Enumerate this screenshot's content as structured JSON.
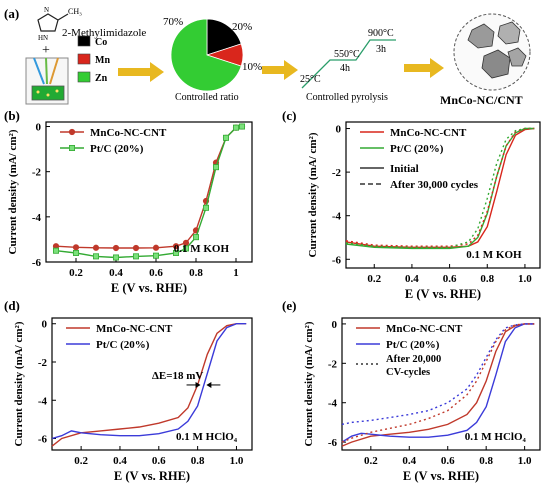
{
  "scheme": {
    "panel_label": "(a)",
    "ligand_name": "2-Methylimidazole",
    "plus_sign": "+",
    "legend": [
      {
        "name": "Co",
        "color": "#000000"
      },
      {
        "name": "Mn",
        "color": "#d9261c"
      },
      {
        "name": "Zn",
        "color": "#33cc33"
      }
    ],
    "pie": {
      "slices": [
        {
          "name": "Co",
          "percent": 20,
          "label": "20%",
          "color": "#000000"
        },
        {
          "name": "Mn",
          "percent": 10,
          "label": "10%",
          "color": "#d9261c"
        },
        {
          "name": "Zn",
          "percent": 70,
          "label": "70%",
          "color": "#33cc33"
        }
      ],
      "caption": "Controlled ratio"
    },
    "pyrolysis": {
      "steps": [
        {
          "temp": "25°C",
          "time": ""
        },
        {
          "temp": "550°C",
          "time": "4h"
        },
        {
          "temp": "900°C",
          "time": "3h"
        }
      ],
      "caption": "Controlled pyrolysis"
    },
    "product": "MnCo-NC/CNT",
    "arrow_color": "#e8b820"
  },
  "chart_data": [
    {
      "panel": "(b)",
      "type": "line",
      "xlabel": "E (V vs. RHE)",
      "ylabel": "Current density (mA/ cm²)",
      "xlim": [
        0.05,
        1.08
      ],
      "ylim": [
        -6.0,
        0.2
      ],
      "xticks": [
        0.2,
        0.4,
        0.6,
        0.8,
        1.0
      ],
      "xticklabels": [
        "0.2",
        "0.4",
        "0.6",
        "0.8",
        "1"
      ],
      "yticks": [
        0,
        -2,
        -4,
        -6
      ],
      "yticklabels": [
        "0",
        "-2",
        "-4",
        "-6"
      ],
      "annotation": "0.1 M KOH",
      "legend_position": "top-left",
      "series": [
        {
          "name": "MnCo-NC-CNT",
          "color": "#c0392b",
          "marker": "circle",
          "dash": "",
          "x": [
            0.1,
            0.2,
            0.3,
            0.4,
            0.5,
            0.6,
            0.7,
            0.75,
            0.8,
            0.85,
            0.9,
            0.95,
            1.0,
            1.03
          ],
          "y": [
            -5.3,
            -5.35,
            -5.37,
            -5.38,
            -5.38,
            -5.37,
            -5.3,
            -5.15,
            -4.6,
            -3.3,
            -1.6,
            -0.5,
            -0.05,
            0.0
          ]
        },
        {
          "name": "Pt/C (20%)",
          "color": "#33aa33",
          "marker": "square",
          "dash": "",
          "x": [
            0.1,
            0.2,
            0.3,
            0.4,
            0.5,
            0.6,
            0.7,
            0.75,
            0.8,
            0.85,
            0.9,
            0.95,
            1.0,
            1.03
          ],
          "y": [
            -5.5,
            -5.6,
            -5.75,
            -5.8,
            -5.75,
            -5.72,
            -5.6,
            -5.4,
            -4.9,
            -3.6,
            -1.8,
            -0.5,
            -0.05,
            0.0
          ]
        }
      ]
    },
    {
      "panel": "(c)",
      "type": "line",
      "xlabel": "E (V vs. RHE)",
      "ylabel": "Current density (mA/ cm²)",
      "xlim": [
        0.05,
        1.08
      ],
      "ylim": [
        -6.4,
        0.3
      ],
      "xticks": [
        0.2,
        0.4,
        0.6,
        0.8,
        1.0
      ],
      "xticklabels": [
        "0.2",
        "0.4",
        "0.6",
        "0.8",
        "1.0"
      ],
      "yticks": [
        0,
        -2,
        -4,
        -6
      ],
      "yticklabels": [
        "0",
        "-2",
        "-4",
        "-6"
      ],
      "annotation": "0.1 M KOH",
      "legend_position": "top-left",
      "style_legend": [
        {
          "label": "Initial",
          "dash": ""
        },
        {
          "label": "After 30,000 cycles",
          "dash": "5,3"
        }
      ],
      "series": [
        {
          "name": "MnCo-NC-CNT",
          "color": "#d9261c",
          "marker": "",
          "dash": "",
          "x": [
            0.05,
            0.2,
            0.4,
            0.6,
            0.7,
            0.75,
            0.8,
            0.85,
            0.9,
            0.95,
            1.0,
            1.05
          ],
          "y": [
            -5.2,
            -5.4,
            -5.45,
            -5.45,
            -5.4,
            -5.2,
            -4.5,
            -2.9,
            -1.2,
            -0.3,
            -0.05,
            0.0
          ]
        },
        {
          "name": "Pt/C (20%)",
          "color": "#33aa33",
          "marker": "",
          "dash": "",
          "x": [
            0.05,
            0.2,
            0.4,
            0.6,
            0.7,
            0.75,
            0.8,
            0.85,
            0.9,
            0.95,
            1.0,
            1.05
          ],
          "y": [
            -5.3,
            -5.45,
            -5.5,
            -5.5,
            -5.4,
            -5.0,
            -3.9,
            -2.2,
            -0.8,
            -0.2,
            0.0,
            0.0
          ]
        },
        {
          "name": "",
          "color": "#d9261c",
          "marker": "",
          "dash": "2,3",
          "x": [
            0.05,
            0.2,
            0.4,
            0.6,
            0.7,
            0.75,
            0.8,
            0.85,
            0.9,
            0.95,
            1.0,
            1.05
          ],
          "y": [
            -5.15,
            -5.35,
            -5.4,
            -5.4,
            -5.3,
            -4.9,
            -3.8,
            -2.2,
            -0.8,
            -0.15,
            0.0,
            0.0
          ]
        },
        {
          "name": "",
          "color": "#33aa33",
          "marker": "",
          "dash": "2,3",
          "x": [
            0.05,
            0.2,
            0.4,
            0.6,
            0.7,
            0.75,
            0.8,
            0.85,
            0.9,
            0.95,
            1.0,
            1.05
          ],
          "y": [
            -5.25,
            -5.4,
            -5.45,
            -5.45,
            -5.2,
            -4.6,
            -3.2,
            -1.6,
            -0.5,
            -0.1,
            0.0,
            0.0
          ]
        }
      ]
    },
    {
      "panel": "(d)",
      "type": "line",
      "xlabel": "E (V vs. RHE)",
      "ylabel": "Current density (mA/ cm²)",
      "xlim": [
        0.05,
        1.08
      ],
      "ylim": [
        -6.6,
        0.3
      ],
      "xticks": [
        0.2,
        0.4,
        0.6,
        0.8,
        1.0
      ],
      "xticklabels": [
        "0.2",
        "0.4",
        "0.6",
        "0.8",
        "1.0"
      ],
      "yticks": [
        0,
        -2,
        -4,
        -6
      ],
      "yticklabels": [
        "0",
        "-2",
        "-4",
        "-6"
      ],
      "annotation": "0.1 M HClO₄",
      "delta_label": "ΔE=18 mV",
      "legend_position": "top-left",
      "series": [
        {
          "name": "MnCo-NC-CNT",
          "color": "#c0392b",
          "marker": "",
          "dash": "",
          "x": [
            0.05,
            0.1,
            0.2,
            0.3,
            0.4,
            0.5,
            0.6,
            0.7,
            0.75,
            0.8,
            0.85,
            0.9,
            0.95,
            1.0,
            1.05
          ],
          "y": [
            -6.4,
            -6.0,
            -5.7,
            -5.6,
            -5.5,
            -5.4,
            -5.2,
            -4.9,
            -4.4,
            -3.2,
            -1.6,
            -0.5,
            -0.1,
            0.0,
            0.0
          ]
        },
        {
          "name": "Pt/C (20%)",
          "color": "#3b3bd9",
          "marker": "",
          "dash": "",
          "x": [
            0.05,
            0.1,
            0.15,
            0.2,
            0.3,
            0.4,
            0.5,
            0.6,
            0.7,
            0.75,
            0.8,
            0.85,
            0.9,
            0.95,
            1.0,
            1.05
          ],
          "y": [
            -6.0,
            -5.85,
            -5.6,
            -5.7,
            -5.8,
            -5.85,
            -5.85,
            -5.75,
            -5.5,
            -5.1,
            -4.3,
            -2.6,
            -0.9,
            -0.2,
            0.0,
            0.0
          ]
        }
      ]
    },
    {
      "panel": "(e)",
      "type": "line",
      "xlabel": "E (V vs. RHE)",
      "ylabel": "Current density (mA/ cm²)",
      "xlim": [
        0.05,
        1.08
      ],
      "ylim": [
        -6.4,
        0.3
      ],
      "xticks": [
        0.2,
        0.4,
        0.6,
        0.8,
        1.0
      ],
      "xticklabels": [
        "0.2",
        "0.4",
        "0.6",
        "0.8",
        "1.0"
      ],
      "yticks": [
        0,
        -2,
        -4,
        -6
      ],
      "yticklabels": [
        "0",
        "-2",
        "-4",
        "-6"
      ],
      "annotation": "0.1 M HClO₄",
      "style_legend": [
        {
          "label": "After 20,000 CV-cycles",
          "dash": "2,3"
        }
      ],
      "legend_position": "top-left",
      "series": [
        {
          "name": "MnCo-NC-CNT",
          "color": "#c0392b",
          "marker": "",
          "dash": "",
          "x": [
            0.05,
            0.1,
            0.2,
            0.3,
            0.4,
            0.5,
            0.6,
            0.7,
            0.75,
            0.8,
            0.85,
            0.9,
            0.95,
            1.0,
            1.05
          ],
          "y": [
            -6.2,
            -6.0,
            -5.7,
            -5.6,
            -5.5,
            -5.35,
            -5.1,
            -4.6,
            -4.0,
            -2.9,
            -1.4,
            -0.4,
            -0.1,
            0.0,
            0.0
          ]
        },
        {
          "name": "Pt/C (20%)",
          "color": "#3b3bd9",
          "marker": "",
          "dash": "",
          "x": [
            0.05,
            0.1,
            0.15,
            0.2,
            0.3,
            0.4,
            0.5,
            0.6,
            0.7,
            0.75,
            0.8,
            0.85,
            0.9,
            0.95,
            1.0,
            1.05
          ],
          "y": [
            -6.0,
            -5.7,
            -5.55,
            -5.6,
            -5.7,
            -5.75,
            -5.75,
            -5.65,
            -5.4,
            -5.0,
            -4.2,
            -2.6,
            -0.9,
            -0.2,
            0.0,
            0.0
          ]
        },
        {
          "name": "",
          "color": "#c0392b",
          "marker": "",
          "dash": "2,3",
          "x": [
            0.05,
            0.1,
            0.2,
            0.3,
            0.4,
            0.5,
            0.6,
            0.7,
            0.75,
            0.8,
            0.85,
            0.9,
            0.95,
            1.0,
            1.05
          ],
          "y": [
            -6.0,
            -5.8,
            -5.5,
            -5.3,
            -5.1,
            -4.8,
            -4.4,
            -3.6,
            -2.9,
            -1.9,
            -0.9,
            -0.3,
            -0.05,
            0.0,
            0.0
          ]
        },
        {
          "name": "",
          "color": "#3b3bd9",
          "marker": "",
          "dash": "2,3",
          "x": [
            0.05,
            0.1,
            0.2,
            0.3,
            0.4,
            0.5,
            0.6,
            0.7,
            0.75,
            0.8,
            0.85,
            0.9,
            0.95,
            1.0,
            1.05
          ],
          "y": [
            -5.1,
            -5.0,
            -4.9,
            -4.75,
            -4.6,
            -4.4,
            -4.0,
            -3.3,
            -2.6,
            -1.7,
            -0.8,
            -0.2,
            -0.05,
            0.0,
            0.0
          ]
        }
      ]
    }
  ]
}
